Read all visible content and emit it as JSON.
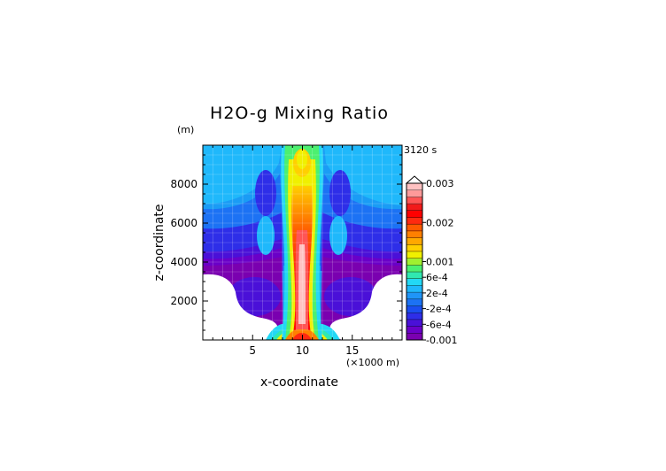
{
  "chart_data": {
    "type": "heatmap",
    "title": "H2O-g Mixing Ratio",
    "time_label": "3120 s",
    "xlabel": "x-coordinate",
    "ylabel": "z-coordinate",
    "x_unit": "(×1000 m)",
    "y_unit": "(m)",
    "xlim": [
      0,
      20
    ],
    "ylim": [
      0,
      10000
    ],
    "x_ticks": [
      5,
      10,
      15
    ],
    "y_ticks": [
      2000,
      4000,
      6000,
      8000
    ],
    "colorbar": {
      "range": [
        -0.001,
        0.003
      ],
      "tick_values": [
        0.003,
        0.002,
        0.001,
        0.0006,
        0.0002,
        -0.0002,
        -0.0006,
        -0.001
      ],
      "tick_labels": [
        "0.003",
        "0.002",
        "0.001",
        "6e-4",
        "2e-4",
        "-2e-4",
        "-6e-4",
        "-0.001"
      ],
      "colors": [
        "#7a00b0",
        "#6a00c8",
        "#4a10d8",
        "#2e2ee8",
        "#1a4ef0",
        "#1c72f4",
        "#1f95f8",
        "#1fb8fb",
        "#22d8f5",
        "#30e8b0",
        "#4cf070",
        "#a0f030",
        "#f0f000",
        "#ffd000",
        "#ffa800",
        "#ff8000",
        "#ff5a00",
        "#ff2a10",
        "#ff0000",
        "#f21a1a",
        "#ff5555",
        "#ff9a9a",
        "#ffc2c2"
      ]
    }
  }
}
